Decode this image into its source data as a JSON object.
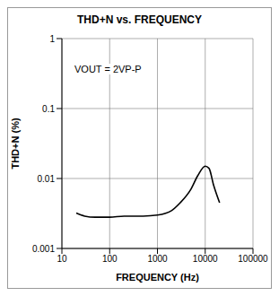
{
  "chart_data": {
    "type": "line",
    "title": "THD+N vs. FREQUENCY",
    "annotations": [
      "VOUT = 2VP-P"
    ],
    "x_label": "FREQUENCY (Hz)",
    "y_label": "THD+N (%)",
    "x": [
      20,
      30,
      50,
      100,
      200,
      500,
      1000,
      2000,
      3000,
      5000,
      7000,
      10000,
      12000,
      15000,
      20000
    ],
    "values": [
      0.0032,
      0.0029,
      0.0028,
      0.0028,
      0.0029,
      0.0029,
      0.003,
      0.0035,
      0.0045,
      0.007,
      0.011,
      0.015,
      0.014,
      0.008,
      0.0045
    ],
    "color": "#000000",
    "xlim": [
      10,
      100000
    ],
    "ylim": [
      0.001,
      1
    ],
    "xticks": [
      10,
      100,
      1000,
      10000,
      100000
    ],
    "yticks": [
      0.001,
      0.01,
      0.1,
      1
    ],
    "log": true,
    "grid": true
  }
}
